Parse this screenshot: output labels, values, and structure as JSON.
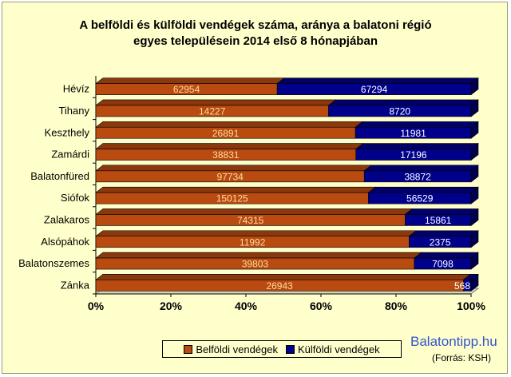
{
  "chart_data": {
    "type": "bar",
    "orientation": "horizontal",
    "stacked": "percent",
    "title": [
      "A belföldi és külföldi vendégek száma, aránya a balatoni régió",
      "egyes településein 2014 első 8 hónapjában"
    ],
    "categories": [
      "Hévíz",
      "Tihany",
      "Keszthely",
      "Zamárdi",
      "Balatonfüred",
      "Siófok",
      "Zalakaros",
      "Alsópáhok",
      "Balatonszemes",
      "Zánka"
    ],
    "series": [
      {
        "name": "Belföldi vendégek",
        "color": "#b94a10",
        "values": [
          62954,
          14227,
          26891,
          38831,
          97734,
          150125,
          74315,
          11992,
          39803,
          26943
        ]
      },
      {
        "name": "Külföldi vendégek",
        "color": "#00008b",
        "values": [
          67294,
          8720,
          11981,
          17196,
          38872,
          56529,
          15861,
          2375,
          7098,
          568
        ]
      }
    ],
    "x_ticks": [
      "0%",
      "20%",
      "40%",
      "60%",
      "80%",
      "100%"
    ],
    "xlim": [
      0,
      100
    ],
    "legend_position": "bottom",
    "grid": false
  },
  "watermark": {
    "brand": "Balatontipp.hu",
    "source": "(Forrás: KSH)"
  }
}
